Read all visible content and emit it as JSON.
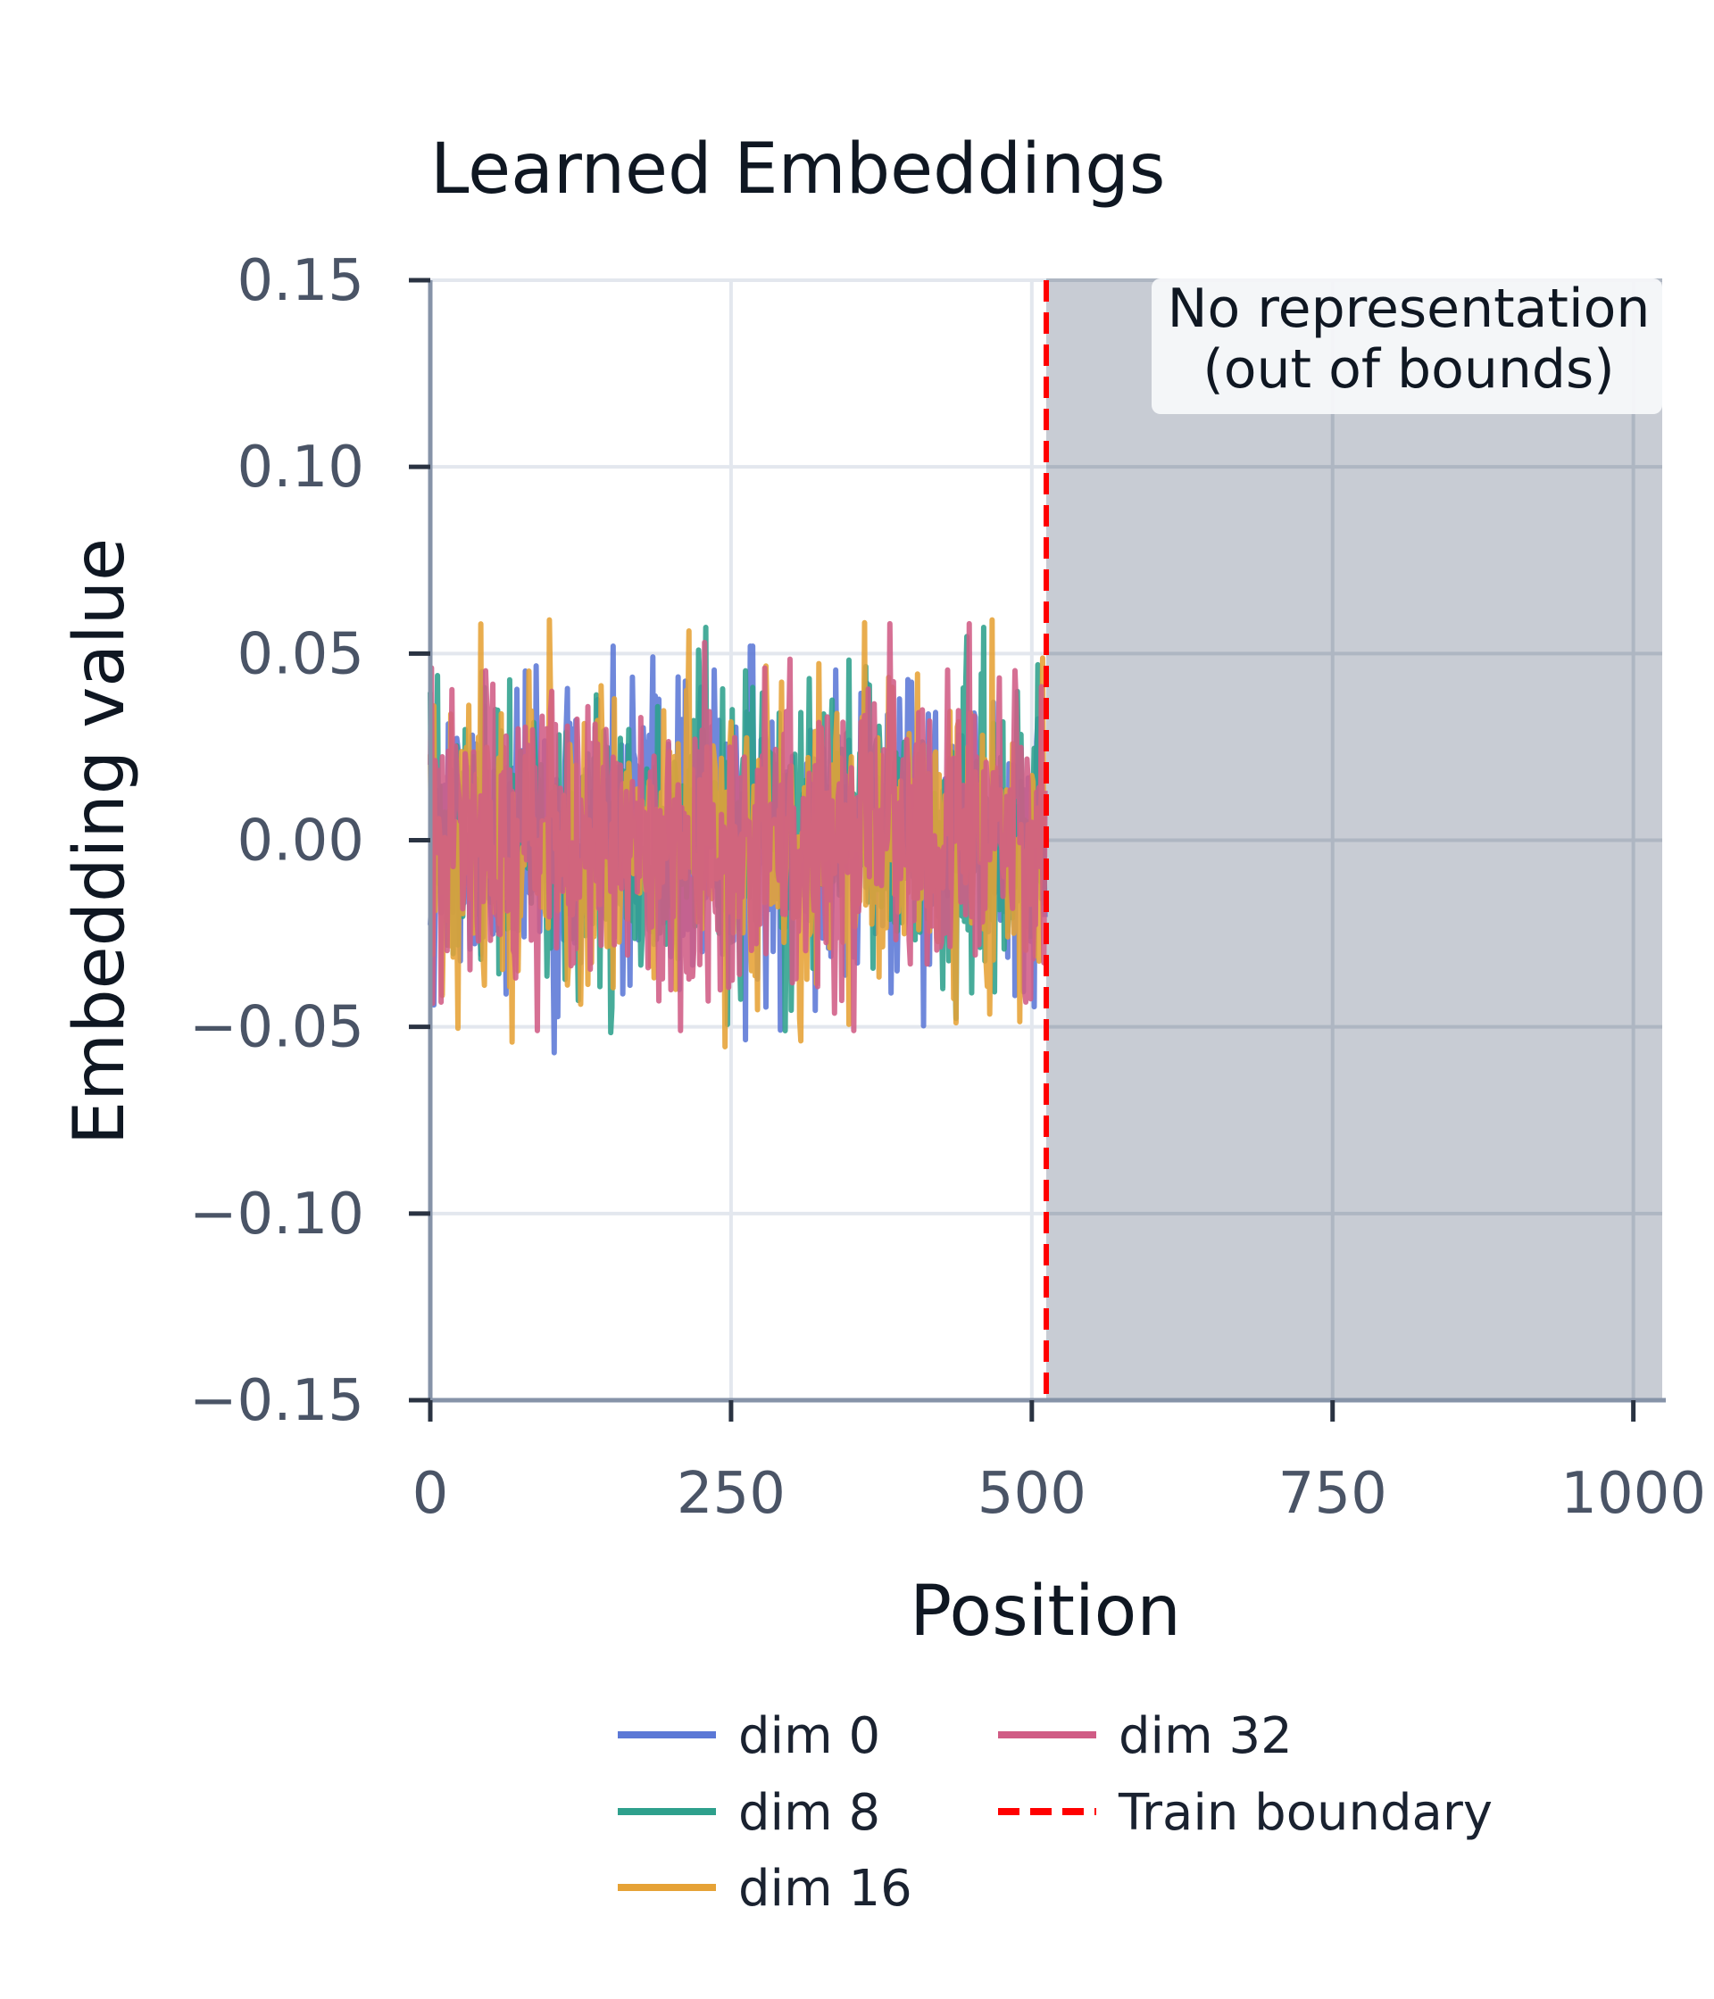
{
  "chart_data": {
    "type": "line",
    "title": "Learned Embeddings",
    "xlabel": "Position",
    "ylabel": "Embedding value",
    "xlim": [
      0,
      1024
    ],
    "ylim": [
      -0.15,
      0.15
    ],
    "x_ticks": [
      0,
      250,
      500,
      750,
      1000
    ],
    "x_tick_labels": [
      "0",
      "250",
      "500",
      "750",
      "1000"
    ],
    "y_ticks": [
      0.15,
      0.1,
      0.05,
      0.0,
      -0.05,
      -0.1,
      -0.15
    ],
    "y_tick_labels": [
      "0.15",
      "0.10",
      "0.05",
      "0.00",
      "−0.05",
      "−0.10",
      "−0.15"
    ],
    "grid": true,
    "train_boundary_x": 512,
    "out_of_bounds_region": {
      "x_start": 512,
      "x_end": 1024,
      "color": "#c8ccd4"
    },
    "annotation": [
      "No representation",
      "(out of bounds)"
    ],
    "legend_placement": "below",
    "series": [
      {
        "name": "dim 0",
        "color": "#5b78d6",
        "n_points": 512,
        "std": 0.02,
        "min": -0.062,
        "max": 0.052,
        "seed": 11
      },
      {
        "name": "dim 8",
        "color": "#2ea08c",
        "n_points": 512,
        "std": 0.02,
        "min": -0.056,
        "max": 0.057,
        "seed": 23
      },
      {
        "name": "dim 16",
        "color": "#e6a236",
        "n_points": 512,
        "std": 0.02,
        "min": -0.059,
        "max": 0.059,
        "seed": 37
      },
      {
        "name": "dim 32",
        "color": "#d05c85",
        "n_points": 512,
        "std": 0.02,
        "min": -0.051,
        "max": 0.058,
        "seed": 53
      }
    ],
    "boundary_series": {
      "name": "Train boundary",
      "color": "#ff0000",
      "style": "dashed"
    }
  }
}
